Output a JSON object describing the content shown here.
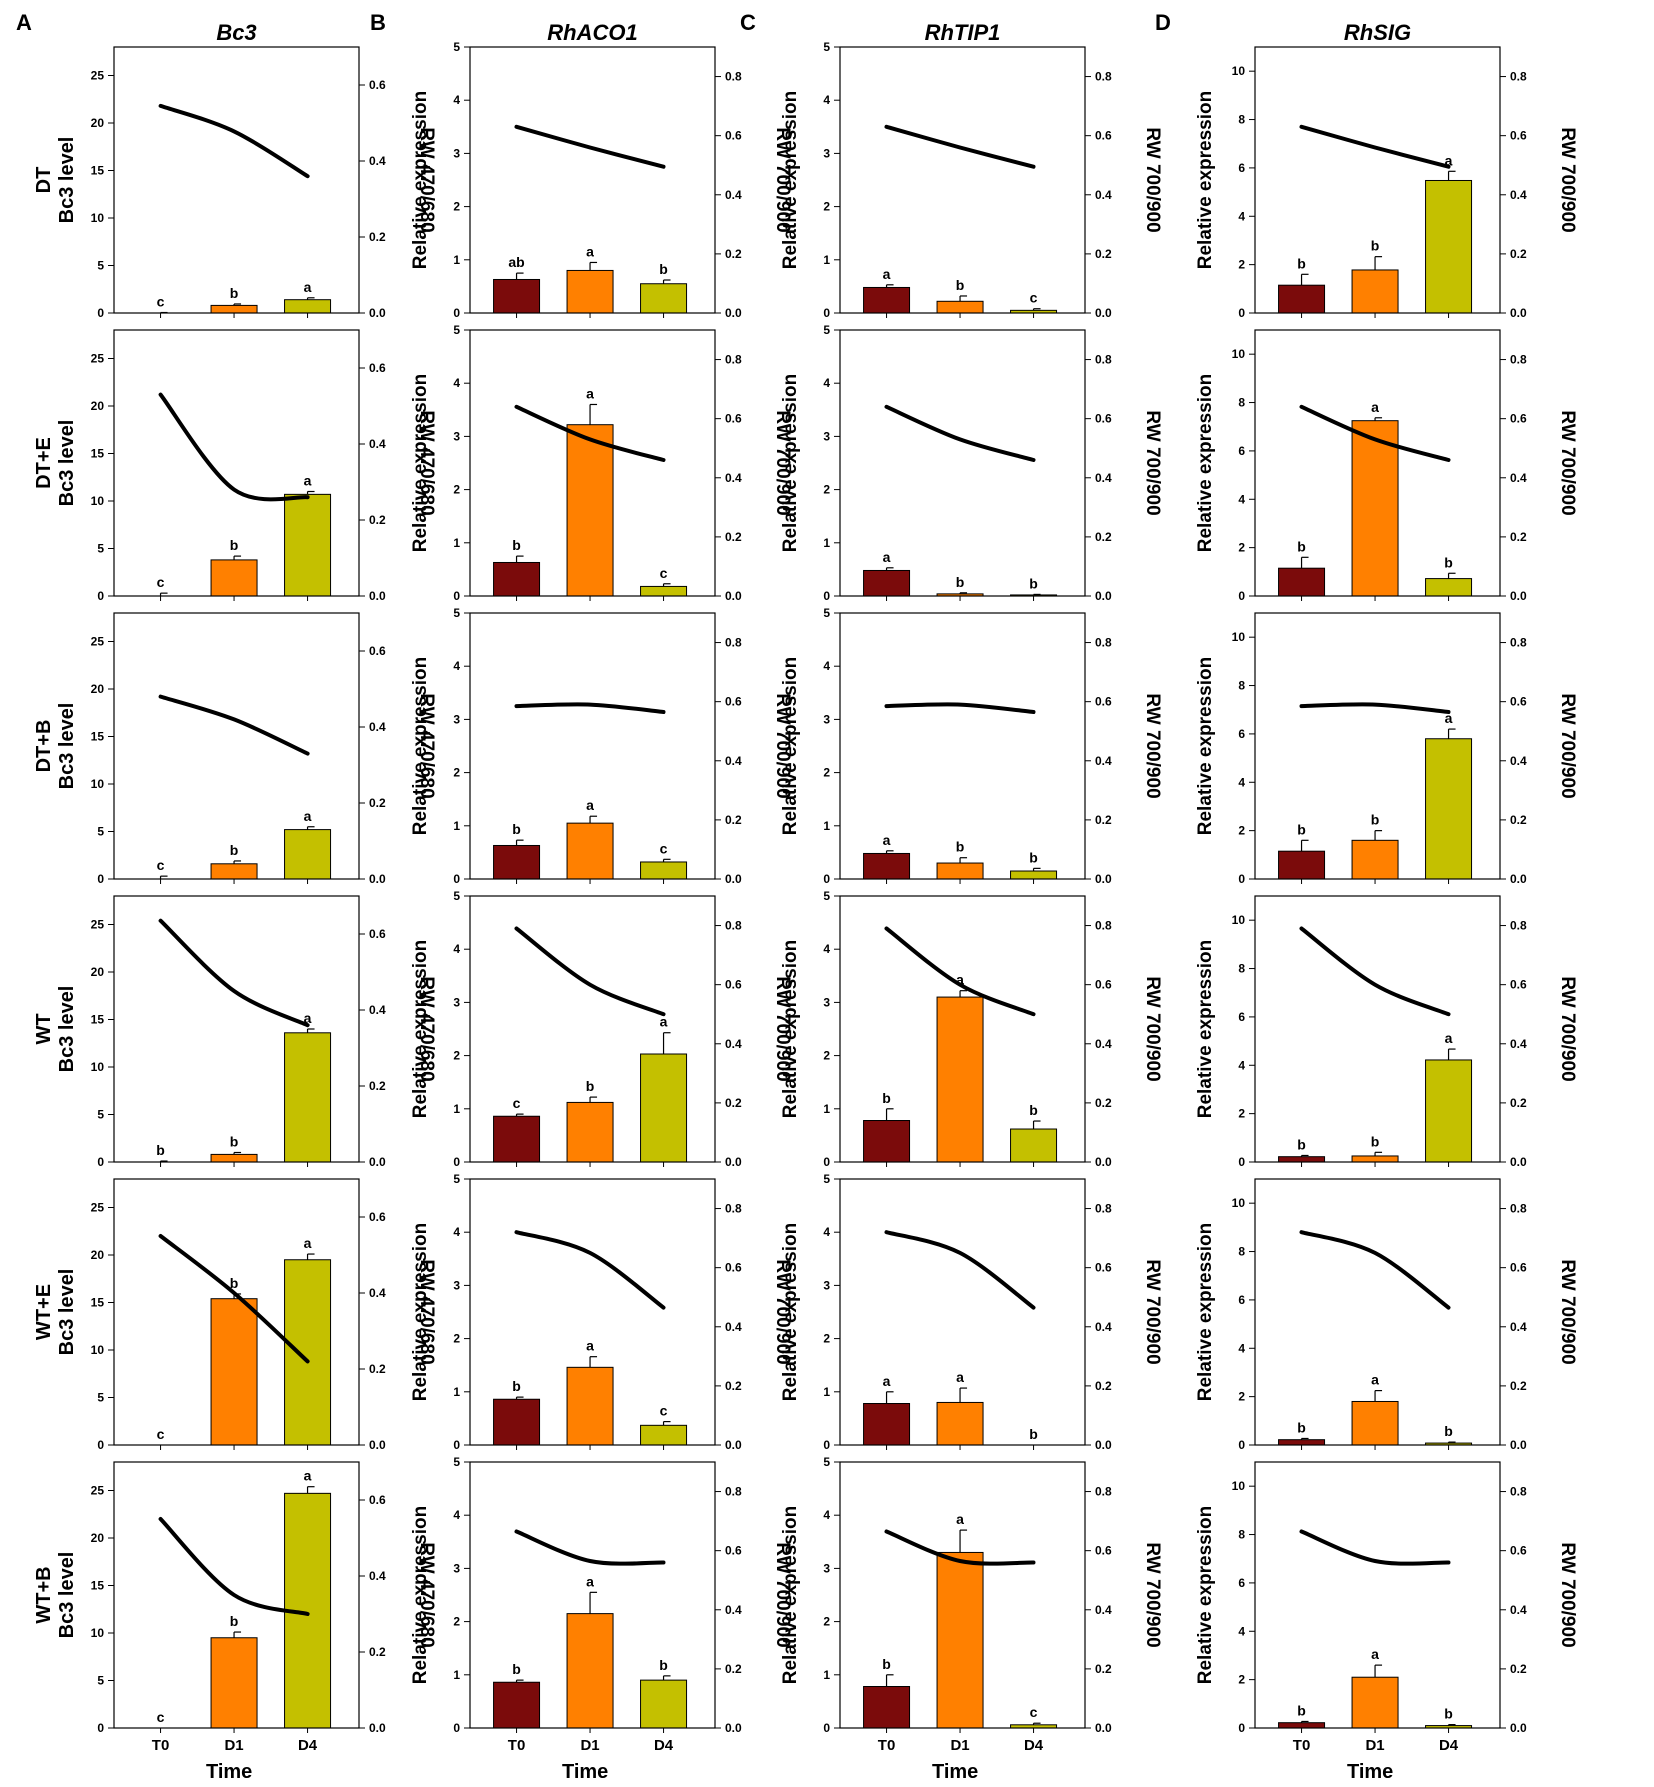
{
  "chart_data": {
    "type": "bar",
    "x_axis_title": "Time",
    "categories": [
      "T0",
      "D1",
      "D4"
    ],
    "colors": [
      "#7b0b0b",
      "#ff8000",
      "#c4c000"
    ],
    "columns": [
      {
        "panel_letter": "A",
        "title": "Bc3",
        "left_axis": {
          "label_suffix": "Bc3 level",
          "ylim": [
            0,
            28
          ],
          "ticks": [
            "0",
            "5",
            "10",
            "15",
            "20",
            "25"
          ]
        },
        "right_axis": {
          "label": "RW 470/680",
          "ylim": [
            0,
            0.7
          ],
          "ticks": [
            "0.0",
            "0.2",
            "0.4",
            "0.6"
          ]
        },
        "rows": [
          {
            "label": "DT",
            "values": [
              0,
              0.8,
              1.4
            ],
            "errors": [
              0.05,
              0.15,
              0.2
            ],
            "sig": [
              "c",
              "b",
              "a"
            ],
            "line": [
              0.545,
              0.478,
              0.36
            ]
          },
          {
            "label": "DT+E",
            "values": [
              0,
              3.8,
              10.7
            ],
            "errors": [
              0.3,
              0.4,
              0.3
            ],
            "sig": [
              "c",
              "b",
              "a"
            ],
            "line": [
              0.53,
              0.28,
              0.26
            ]
          },
          {
            "label": "DT+B",
            "values": [
              0,
              1.6,
              5.2
            ],
            "errors": [
              0.3,
              0.3,
              0.3
            ],
            "sig": [
              "c",
              "b",
              "a"
            ],
            "line": [
              0.48,
              0.42,
              0.33
            ]
          },
          {
            "label": "WT",
            "values": [
              0,
              0.8,
              13.6
            ],
            "errors": [
              0.1,
              0.2,
              0.4
            ],
            "sig": [
              "b",
              "b",
              "a"
            ],
            "line": [
              0.635,
              0.45,
              0.36
            ]
          },
          {
            "label": "WT+E",
            "values": [
              0,
              15.4,
              19.5
            ],
            "errors": [
              0,
              0.5,
              0.6
            ],
            "sig": [
              "c",
              "b",
              "a"
            ],
            "line": [
              0.55,
              0.4,
              0.22
            ]
          },
          {
            "label": "WT+B",
            "values": [
              0,
              9.5,
              24.7
            ],
            "errors": [
              0,
              0.6,
              0.7
            ],
            "sig": [
              "c",
              "b",
              "a"
            ],
            "line": [
              0.55,
              0.35,
              0.3
            ]
          }
        ]
      },
      {
        "panel_letter": "B",
        "title": "RhACO1",
        "left_axis": {
          "label": "Relative expression",
          "ylim": [
            0,
            5
          ],
          "ticks": [
            "0",
            "1",
            "2",
            "3",
            "4",
            "5"
          ]
        },
        "right_axis": {
          "label": "RW 700/900",
          "ylim": [
            0,
            0.9
          ],
          "ticks": [
            "0.0",
            "0.2",
            "0.4",
            "0.6",
            "0.8"
          ]
        },
        "rows": [
          {
            "values": [
              0.63,
              0.8,
              0.55
            ],
            "errors": [
              0.12,
              0.15,
              0.07
            ],
            "sig": [
              "ab",
              "a",
              "b"
            ],
            "line": [
              0.63,
              0.56,
              0.495
            ]
          },
          {
            "values": [
              0.63,
              3.22,
              0.18
            ],
            "errors": [
              0.12,
              0.38,
              0.05
            ],
            "sig": [
              "b",
              "a",
              "c"
            ],
            "line": [
              0.64,
              0.53,
              0.46
            ]
          },
          {
            "values": [
              0.63,
              1.05,
              0.32
            ],
            "errors": [
              0.1,
              0.13,
              0.05
            ],
            "sig": [
              "b",
              "a",
              "c"
            ],
            "line": [
              0.585,
              0.59,
              0.565
            ]
          },
          {
            "values": [
              0.86,
              1.12,
              2.03
            ],
            "errors": [
              0.04,
              0.1,
              0.4
            ],
            "sig": [
              "c",
              "b",
              "a"
            ],
            "line": [
              0.79,
              0.6,
              0.5
            ]
          },
          {
            "values": [
              0.86,
              1.46,
              0.37
            ],
            "errors": [
              0.04,
              0.2,
              0.07
            ],
            "sig": [
              "b",
              "a",
              "c"
            ],
            "line": [
              0.72,
              0.65,
              0.465
            ]
          },
          {
            "values": [
              0.86,
              2.15,
              0.9
            ],
            "errors": [
              0.04,
              0.4,
              0.08
            ],
            "sig": [
              "b",
              "a",
              "b"
            ],
            "line": [
              0.665,
              0.565,
              0.56
            ]
          }
        ]
      },
      {
        "panel_letter": "C",
        "title": "RhTIP1",
        "left_axis": {
          "label": "Relative expression",
          "ylim": [
            0,
            5
          ],
          "ticks": [
            "0",
            "1",
            "2",
            "3",
            "4",
            "5"
          ]
        },
        "right_axis": {
          "label": "RW 700/900",
          "ylim": [
            0,
            0.9
          ],
          "ticks": [
            "0.0",
            "0.2",
            "0.4",
            "0.6",
            "0.8"
          ]
        },
        "rows": [
          {
            "values": [
              0.48,
              0.22,
              0.05
            ],
            "errors": [
              0.05,
              0.1,
              0.03
            ],
            "sig": [
              "a",
              "b",
              "c"
            ],
            "line": [
              0.63,
              0.56,
              0.495
            ]
          },
          {
            "values": [
              0.48,
              0.04,
              0.02
            ],
            "errors": [
              0.05,
              0.02,
              0.01
            ],
            "sig": [
              "a",
              "b",
              "b"
            ],
            "line": [
              0.64,
              0.53,
              0.46
            ]
          },
          {
            "values": [
              0.48,
              0.3,
              0.15
            ],
            "errors": [
              0.05,
              0.1,
              0.05
            ],
            "sig": [
              "a",
              "b",
              "b"
            ],
            "line": [
              0.585,
              0.59,
              0.565
            ]
          },
          {
            "values": [
              0.78,
              3.1,
              0.62
            ],
            "errors": [
              0.22,
              0.12,
              0.15
            ],
            "sig": [
              "b",
              "a",
              "b"
            ],
            "line": [
              0.79,
              0.6,
              0.5
            ]
          },
          {
            "values": [
              0.78,
              0.8,
              0
            ],
            "errors": [
              0.22,
              0.27,
              0
            ],
            "sig": [
              "a",
              "a",
              "b"
            ],
            "line": [
              0.72,
              0.65,
              0.465
            ]
          },
          {
            "values": [
              0.78,
              3.3,
              0.06
            ],
            "errors": [
              0.22,
              0.42,
              0.03
            ],
            "sig": [
              "b",
              "a",
              "c"
            ],
            "line": [
              0.665,
              0.565,
              0.56
            ]
          }
        ]
      },
      {
        "panel_letter": "D",
        "title": "RhSIG",
        "left_axis": {
          "label": "Relative expression",
          "ylim": [
            0,
            11
          ],
          "ticks": [
            "0",
            "2",
            "4",
            "6",
            "8",
            "10"
          ]
        },
        "right_axis": {
          "label": "RW 700/900",
          "ylim": [
            0,
            0.9
          ],
          "ticks": [
            "0.0",
            "0.2",
            "0.4",
            "0.6",
            "0.8"
          ]
        },
        "rows": [
          {
            "values": [
              1.15,
              1.78,
              5.48
            ],
            "errors": [
              0.45,
              0.55,
              0.38
            ],
            "sig": [
              "b",
              "b",
              "a"
            ],
            "line": [
              0.63,
              0.56,
              0.495
            ]
          },
          {
            "values": [
              1.15,
              7.25,
              0.72
            ],
            "errors": [
              0.45,
              0.12,
              0.22
            ],
            "sig": [
              "b",
              "a",
              "b"
            ],
            "line": [
              0.64,
              0.53,
              0.46
            ]
          },
          {
            "values": [
              1.15,
              1.6,
              5.8
            ],
            "errors": [
              0.45,
              0.4,
              0.4
            ],
            "sig": [
              "b",
              "b",
              "a"
            ],
            "line": [
              0.585,
              0.59,
              0.565
            ]
          },
          {
            "values": [
              0.22,
              0.25,
              4.22
            ],
            "errors": [
              0.05,
              0.15,
              0.45
            ],
            "sig": [
              "b",
              "b",
              "a"
            ],
            "line": [
              0.79,
              0.6,
              0.5
            ]
          },
          {
            "values": [
              0.22,
              1.8,
              0.08
            ],
            "errors": [
              0.05,
              0.45,
              0.04
            ],
            "sig": [
              "b",
              "a",
              "b"
            ],
            "line": [
              0.72,
              0.65,
              0.465
            ]
          },
          {
            "values": [
              0.22,
              2.1,
              0.1
            ],
            "errors": [
              0.05,
              0.5,
              0.04
            ],
            "sig": [
              "b",
              "a",
              "b"
            ],
            "line": [
              0.665,
              0.565,
              0.56
            ]
          }
        ]
      }
    ]
  }
}
